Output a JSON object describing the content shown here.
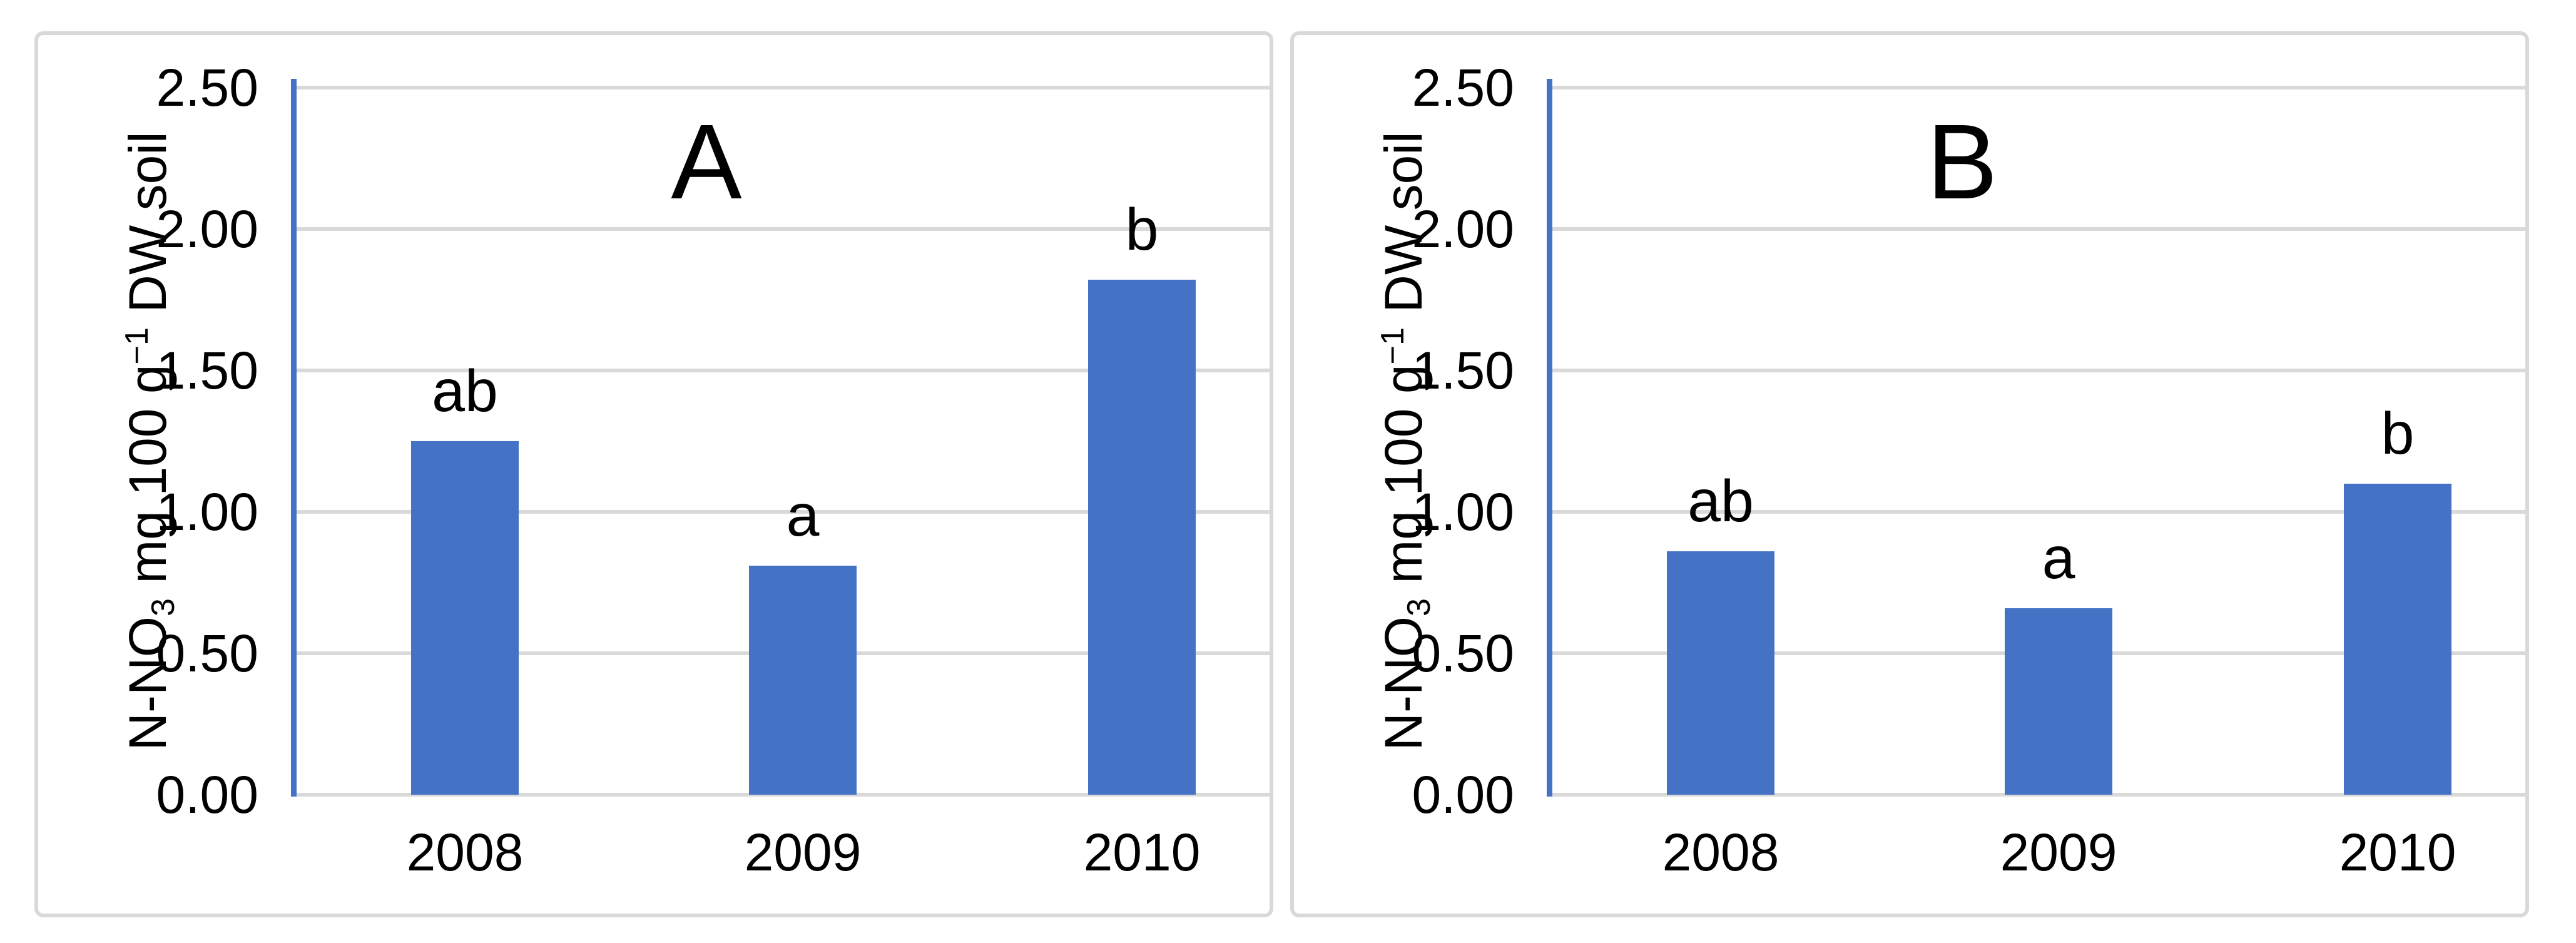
{
  "figure": {
    "background_color": "#FFFFFF",
    "panel_border_color": "#D9D9D9",
    "grid_color": "#D9D9D9",
    "axis_line_color": "#4472C4",
    "bar_color": "#4472C4",
    "text_color": "#000000"
  },
  "chart_data": [
    {
      "type": "bar",
      "title": "A",
      "categories": [
        "2008",
        "2009",
        "2010"
      ],
      "values": [
        1.25,
        0.81,
        1.82
      ],
      "bar_labels": [
        "ab",
        "a",
        "b"
      ],
      "ylabel": "N-NO3 mg 100 g-1 DW soil",
      "ylabel_parts": {
        "prefix": "N-NO",
        "sub": "3",
        "mid": " mg 100 g",
        "sup": "−1",
        "suffix": " DW soil"
      },
      "xlabel": "",
      "ylim": [
        0,
        2.5
      ],
      "ytick_step": 0.5,
      "ytick_labels": [
        "0.00",
        "0.50",
        "1.00",
        "1.50",
        "2.00",
        "2.50"
      ],
      "grid": true,
      "legend": null
    },
    {
      "type": "bar",
      "title": "B",
      "categories": [
        "2008",
        "2009",
        "2010"
      ],
      "values": [
        0.86,
        0.66,
        1.1
      ],
      "bar_labels": [
        "ab",
        "a",
        "b"
      ],
      "ylabel": "N-NO3 mg 100 g-1 DW soil",
      "ylabel_parts": {
        "prefix": "N-NO",
        "sub": "3",
        "mid": " mg 100 g",
        "sup": "−1",
        "suffix": " DW soil"
      },
      "xlabel": "",
      "ylim": [
        0,
        2.5
      ],
      "ytick_step": 0.5,
      "ytick_labels": [
        "0.00",
        "0.50",
        "1.00",
        "1.50",
        "2.00",
        "2.50"
      ],
      "grid": true,
      "legend": null
    }
  ]
}
